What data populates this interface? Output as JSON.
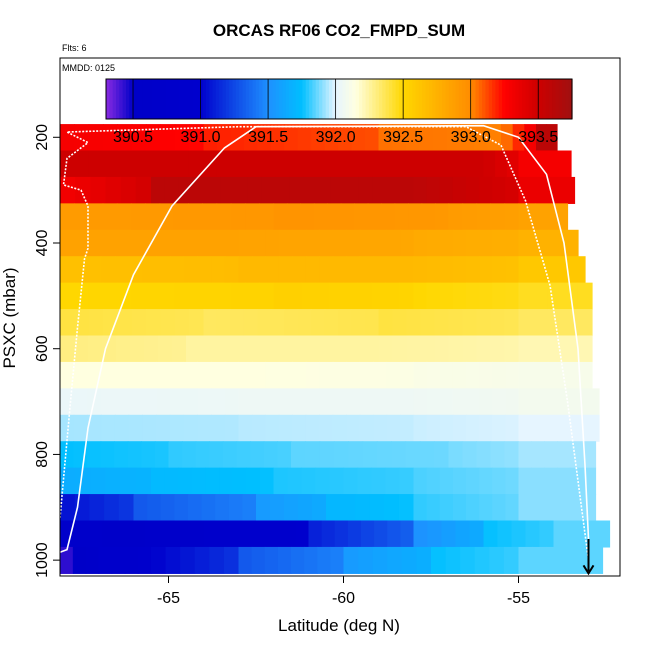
{
  "chart_data": {
    "type": "heatmap",
    "title": "ORCAS RF06 CO2_FMPD_SUM",
    "flights_label": "Flts: 6",
    "date_label": "MMDD: 0125",
    "xlabel": "Latitude (deg N)",
    "ylabel": "PSXC (mbar)",
    "xlim": [
      -68.1,
      -52.1
    ],
    "ylim": [
      1030,
      50
    ],
    "x_ticks": [
      -65,
      -60,
      -55
    ],
    "x_tick_labels": [
      "-65",
      "-60",
      "-55"
    ],
    "y_ticks": [
      200,
      400,
      600,
      800,
      1000
    ],
    "y_tick_labels": [
      "200",
      "400",
      "600",
      "800",
      "1000"
    ],
    "colorbar": {
      "min": 390.3,
      "max": 393.75,
      "ticks": [
        390.5,
        391.0,
        391.5,
        392.0,
        392.5,
        393.0,
        393.5
      ],
      "tick_labels": [
        "390.5",
        "391.0",
        "391.5",
        "392.0",
        "392.5",
        "393.0",
        "393.5"
      ],
      "stops": [
        {
          "v": 390.3,
          "color": "#8a2be2"
        },
        {
          "v": 390.5,
          "color": "#0000c8"
        },
        {
          "v": 391.0,
          "color": "#0000cd"
        },
        {
          "v": 391.5,
          "color": "#1e90ff"
        },
        {
          "v": 391.75,
          "color": "#00bfff"
        },
        {
          "v": 392.0,
          "color": "#e6f5ff"
        },
        {
          "v": 392.15,
          "color": "#ffffe0"
        },
        {
          "v": 392.5,
          "color": "#ffd700"
        },
        {
          "v": 393.0,
          "color": "#ff8c00"
        },
        {
          "v": 393.25,
          "color": "#ff0000"
        },
        {
          "v": 393.5,
          "color": "#cd0000"
        },
        {
          "v": 393.75,
          "color": "#a01010"
        }
      ]
    },
    "pressure_bands": [
      {
        "p_top": 175,
        "p_bot": 225,
        "lat_end": -53.9,
        "segments": [
          [
            -68.1,
            393.3
          ],
          [
            -64.0,
            393.2
          ],
          [
            -59.0,
            393.05
          ],
          [
            -55.5,
            393.0
          ],
          [
            -54.5,
            393.6
          ]
        ]
      },
      {
        "p_top": 225,
        "p_bot": 275,
        "lat_end": -53.5,
        "segments": [
          [
            -68.1,
            393.5
          ],
          [
            -62.0,
            393.5
          ],
          [
            -56.0,
            393.5
          ],
          [
            -55.0,
            393.3
          ]
        ]
      },
      {
        "p_top": 275,
        "p_bot": 325,
        "lat_end": -53.4,
        "segments": [
          [
            -68.1,
            393.3
          ],
          [
            -65.5,
            393.6
          ],
          [
            -58.0,
            393.6
          ],
          [
            -55.0,
            393.35
          ]
        ]
      },
      {
        "p_top": 325,
        "p_bot": 375,
        "lat_end": -53.6,
        "segments": [
          [
            -68.1,
            392.9
          ],
          [
            -62.0,
            392.95
          ],
          [
            -57.0,
            392.9
          ],
          [
            -55.0,
            392.85
          ]
        ]
      },
      {
        "p_top": 375,
        "p_bot": 425,
        "lat_end": -53.3,
        "segments": [
          [
            -68.1,
            392.85
          ],
          [
            -63.0,
            392.85
          ],
          [
            -58.0,
            392.8
          ],
          [
            -55.0,
            392.75
          ]
        ]
      },
      {
        "p_top": 425,
        "p_bot": 475,
        "lat_end": -53.1,
        "segments": [
          [
            -68.1,
            392.65
          ],
          [
            -63.0,
            392.7
          ],
          [
            -58.0,
            392.7
          ],
          [
            -55.0,
            392.6
          ]
        ]
      },
      {
        "p_top": 475,
        "p_bot": 525,
        "lat_end": -52.9,
        "segments": [
          [
            -68.1,
            392.5
          ],
          [
            -62.0,
            392.55
          ],
          [
            -58.0,
            392.5
          ],
          [
            -55.0,
            392.45
          ]
        ]
      },
      {
        "p_top": 525,
        "p_bot": 575,
        "lat_end": -52.9,
        "segments": [
          [
            -68.1,
            392.4
          ],
          [
            -64.0,
            392.35
          ],
          [
            -59.0,
            392.4
          ],
          [
            -55.0,
            392.35
          ]
        ]
      },
      {
        "p_top": 575,
        "p_bot": 625,
        "lat_end": -52.9,
        "segments": [
          [
            -68.1,
            392.3
          ],
          [
            -64.5,
            392.25
          ],
          [
            -59.0,
            392.25
          ],
          [
            -55.0,
            392.22
          ]
        ]
      },
      {
        "p_top": 625,
        "p_bot": 675,
        "lat_end": -52.9,
        "segments": [
          [
            -68.1,
            392.15
          ],
          [
            -63.0,
            392.15
          ],
          [
            -58.0,
            392.12
          ],
          [
            -55.0,
            392.1
          ]
        ]
      },
      {
        "p_top": 675,
        "p_bot": 725,
        "lat_end": -52.7,
        "segments": [
          [
            -68.1,
            392.03
          ],
          [
            -63.0,
            392.05
          ],
          [
            -58.0,
            392.05
          ],
          [
            -55.0,
            392.08
          ]
        ]
      },
      {
        "p_top": 725,
        "p_bot": 775,
        "lat_end": -52.7,
        "segments": [
          [
            -68.1,
            391.93
          ],
          [
            -63.0,
            391.95
          ],
          [
            -58.0,
            391.97
          ],
          [
            -55.0,
            392.0
          ]
        ]
      },
      {
        "p_top": 775,
        "p_bot": 825,
        "lat_end": -52.8,
        "segments": [
          [
            -68.1,
            391.75
          ],
          [
            -65.0,
            391.8
          ],
          [
            -61.5,
            391.85
          ],
          [
            -57.0,
            391.88
          ],
          [
            -55.0,
            391.93
          ]
        ]
      },
      {
        "p_top": 825,
        "p_bot": 875,
        "lat_end": -52.8,
        "segments": [
          [
            -68.1,
            391.65
          ],
          [
            -65.5,
            391.72
          ],
          [
            -62.0,
            391.78
          ],
          [
            -58.0,
            391.83
          ],
          [
            -55.0,
            391.9
          ]
        ]
      },
      {
        "p_top": 875,
        "p_bot": 925,
        "lat_end": -52.8,
        "segments": [
          [
            -68.1,
            391.05
          ],
          [
            -66.0,
            391.3
          ],
          [
            -62.5,
            391.55
          ],
          [
            -60.5,
            391.7
          ],
          [
            -58.0,
            391.8
          ],
          [
            -55.0,
            391.9
          ]
        ]
      },
      {
        "p_top": 925,
        "p_bot": 975,
        "lat_end": -52.4,
        "segments": [
          [
            -68.1,
            390.7
          ],
          [
            -66.5,
            390.6
          ],
          [
            -64.0,
            390.8
          ],
          [
            -61.0,
            391.1
          ],
          [
            -58.0,
            391.5
          ],
          [
            -56.0,
            391.75
          ],
          [
            -54.0,
            391.85
          ]
        ]
      },
      {
        "p_top": 975,
        "p_bot": 1025,
        "lat_end": -52.6,
        "segments": [
          [
            -68.1,
            390.4
          ],
          [
            -67.0,
            390.75
          ],
          [
            -65.5,
            391.0
          ],
          [
            -63.0,
            391.3
          ],
          [
            -60.0,
            391.55
          ],
          [
            -57.5,
            391.75
          ],
          [
            -55.0,
            391.85
          ]
        ]
      }
    ],
    "flight_tracks": [
      {
        "name": "outer-track",
        "points": [
          [
            -68.1,
            985
          ],
          [
            -67.9,
            980
          ],
          [
            -67.6,
            900
          ],
          [
            -67.3,
            750
          ],
          [
            -66.8,
            600
          ],
          [
            -66.0,
            460
          ],
          [
            -64.9,
            330
          ],
          [
            -63.4,
            220
          ],
          [
            -62.5,
            180
          ],
          [
            -56.0,
            178
          ],
          [
            -55.0,
            200
          ],
          [
            -54.2,
            270
          ],
          [
            -53.7,
            400
          ],
          [
            -53.3,
            600
          ],
          [
            -53.1,
            820
          ],
          [
            -53.0,
            960
          ],
          [
            -53.0,
            1000
          ]
        ]
      },
      {
        "name": "inner-track",
        "points": [
          [
            -68.1,
            920
          ],
          [
            -67.8,
            700
          ],
          [
            -67.6,
            560
          ],
          [
            -67.4,
            430
          ],
          [
            -67.3,
            410
          ],
          [
            -67.3,
            330
          ],
          [
            -67.5,
            300
          ],
          [
            -68.0,
            290
          ],
          [
            -67.9,
            240
          ],
          [
            -67.3,
            210
          ],
          [
            -67.9,
            190
          ],
          [
            -63.0,
            180
          ],
          [
            -56.5,
            180
          ],
          [
            -55.5,
            215
          ],
          [
            -54.8,
            320
          ],
          [
            -54.1,
            480
          ],
          [
            -53.6,
            700
          ],
          [
            -53.2,
            900
          ],
          [
            -53.0,
            1000
          ]
        ]
      }
    ],
    "arrow": {
      "lat": -53.0,
      "p_from": 960,
      "p_to": 1025
    }
  }
}
